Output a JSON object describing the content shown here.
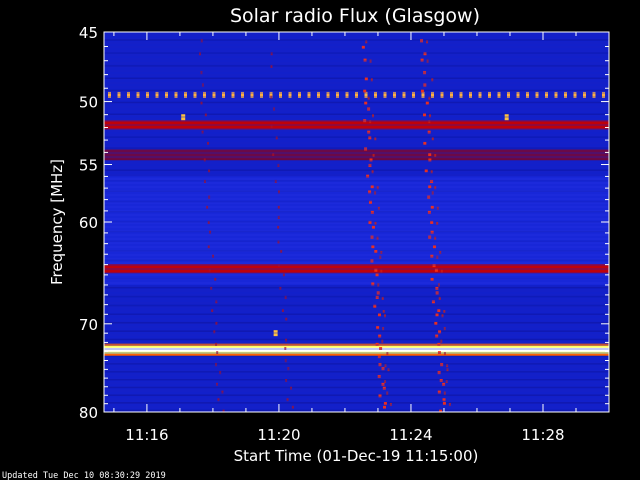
{
  "chart_data": {
    "type": "heatmap",
    "title": "Solar radio Flux (Glasgow)",
    "xlabel": "Start Time (01-Dec-19 11:15:00)",
    "ylabel": "Frequency [MHz]",
    "footer": "Updated Tue Dec 10 08:30:29 2019",
    "x_ticks": [
      "11:16",
      "11:20",
      "11:24",
      "11:28"
    ],
    "x_tick_minutes": [
      16,
      20,
      24,
      28
    ],
    "xlim_minutes": [
      14.7,
      30.0
    ],
    "y_ticks": [
      45,
      50,
      55,
      60,
      70,
      80
    ],
    "ylim": [
      45,
      80
    ],
    "colormap": [
      "#00008c",
      "#1a3cff",
      "#c00000",
      "#ff6000",
      "#ffff60",
      "#ffffff"
    ],
    "background_level": "blue",
    "persistent_bands_mhz": [
      {
        "freq": 49.5,
        "level": "orange-dotted"
      },
      {
        "freq": 51.8,
        "level": "red"
      },
      {
        "freq": 54.2,
        "level": "dark-red"
      },
      {
        "freq": 64.4,
        "level": "red"
      },
      {
        "freq": 72.8,
        "level": "white-hot"
      }
    ],
    "burst_times_minutes": [
      17.6,
      19.7,
      22.5,
      24.3
    ]
  }
}
